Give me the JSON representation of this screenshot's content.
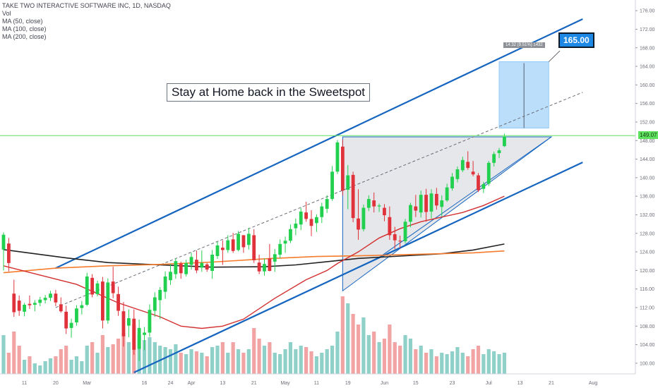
{
  "legend": {
    "title": "TAKE TWO INTERACTIVE SOFTWARE INC, 1D, NASDAQ",
    "vol": "Vol",
    "ma50": "MA (50, close)",
    "ma100": "MA (100, close)",
    "ma200": "MA (200, close)"
  },
  "annotation": {
    "text": "Stay at Home back in the Sweetspot"
  },
  "target": {
    "label": "165.00",
    "range_label": "14.32 (9.51%) 1432"
  },
  "current_price": {
    "label": "149.07"
  },
  "colors": {
    "up": "#26c6a0",
    "up_candle": "#21d04e",
    "down": "#e0323a",
    "vol_up": "#8fd0c8",
    "vol_down": "#f2a3a3",
    "channel": "#1565c0",
    "ma50": "#d32f2f",
    "ma100": "#f57c2c",
    "ma200": "#222222",
    "target_box": "#bbdefb",
    "triangle_fill": "#e6e7ea",
    "price_line": "#5fe35f"
  },
  "chart_data": {
    "type": "candlestick",
    "x_ticks": [
      "11",
      "20",
      "Mar",
      "16",
      "24",
      "Apr",
      "13",
      "21",
      "May",
      "11",
      "19",
      "Jun",
      "15",
      "23",
      "Jul",
      "13",
      "21",
      "Aug"
    ],
    "y_ticks": [
      100,
      104,
      108,
      112,
      116,
      120,
      124,
      128,
      132,
      136,
      140,
      144,
      148,
      152,
      156,
      160,
      164,
      168,
      172,
      176
    ],
    "ylim": [
      98,
      178
    ],
    "candles": [
      {
        "o": 124.5,
        "h": 128.2,
        "l": 120,
        "c": 127.7
      },
      {
        "o": 125.8,
        "h": 127,
        "l": 119.8,
        "c": 121.6
      },
      {
        "o": 115,
        "h": 118,
        "l": 110,
        "c": 111
      },
      {
        "o": 113.5,
        "h": 114.6,
        "l": 110.2,
        "c": 111.3
      },
      {
        "o": 111.1,
        "h": 113,
        "l": 110.1,
        "c": 112.6
      },
      {
        "o": 112.8,
        "h": 114.6,
        "l": 111.7,
        "c": 112.5
      },
      {
        "o": 112.6,
        "h": 113.6,
        "l": 111.2,
        "c": 113
      },
      {
        "o": 113,
        "h": 114.3,
        "l": 112.3,
        "c": 113.7
      },
      {
        "o": 113.6,
        "h": 114.7,
        "l": 112.9,
        "c": 114.1
      },
      {
        "o": 114.1,
        "h": 115.6,
        "l": 113.4,
        "c": 115
      },
      {
        "o": 115,
        "h": 115.8,
        "l": 112.3,
        "c": 113.1
      },
      {
        "o": 112.7,
        "h": 114.2,
        "l": 110.9,
        "c": 111.2
      },
      {
        "o": 111.1,
        "h": 112.4,
        "l": 106.3,
        "c": 107.5
      },
      {
        "o": 107.6,
        "h": 109.6,
        "l": 105.5,
        "c": 108.7
      },
      {
        "o": 108.8,
        "h": 112.5,
        "l": 108.1,
        "c": 111.8
      },
      {
        "o": 111.9,
        "h": 113.4,
        "l": 110.5,
        "c": 112.5
      },
      {
        "o": 112.6,
        "h": 119.5,
        "l": 112.3,
        "c": 118.7
      },
      {
        "o": 118.4,
        "h": 119.2,
        "l": 114.2,
        "c": 114.8
      },
      {
        "o": 114.9,
        "h": 117.8,
        "l": 114.4,
        "c": 117.2
      },
      {
        "o": 117.6,
        "h": 118.6,
        "l": 107.5,
        "c": 109.2
      },
      {
        "o": 109.2,
        "h": 118.3,
        "l": 108.5,
        "c": 117.4
      },
      {
        "o": 117.6,
        "h": 120.8,
        "l": 114,
        "c": 115.1
      },
      {
        "o": 114.9,
        "h": 116.5,
        "l": 110.2,
        "c": 111.3
      },
      {
        "o": 111.2,
        "h": 113.2,
        "l": 103.6,
        "c": 105.8
      },
      {
        "o": 108.1,
        "h": 111.6,
        "l": 105.6,
        "c": 109.7
      },
      {
        "o": 109.6,
        "h": 111.6,
        "l": 101.8,
        "c": 102.9
      },
      {
        "o": 103.1,
        "h": 109.4,
        "l": 100.5,
        "c": 107.6
      },
      {
        "o": 106.1,
        "h": 107.8,
        "l": 102.8,
        "c": 106.6
      },
      {
        "o": 106.6,
        "h": 112.7,
        "l": 105.7,
        "c": 111.5
      },
      {
        "o": 111.3,
        "h": 115.3,
        "l": 110,
        "c": 114.2
      },
      {
        "o": 113.6,
        "h": 116.4,
        "l": 109.5,
        "c": 115.8
      },
      {
        "o": 115.4,
        "h": 119.8,
        "l": 113.9,
        "c": 118.7
      },
      {
        "o": 117.9,
        "h": 121.4,
        "l": 116.9,
        "c": 119.7
      },
      {
        "o": 119.2,
        "h": 122.6,
        "l": 118.2,
        "c": 122
      },
      {
        "o": 121.5,
        "h": 121.9,
        "l": 118.2,
        "c": 119.4
      },
      {
        "o": 119.2,
        "h": 122.3,
        "l": 118.7,
        "c": 121.6
      },
      {
        "o": 121.2,
        "h": 123.8,
        "l": 120.2,
        "c": 122.9
      },
      {
        "o": 122.3,
        "h": 124.3,
        "l": 119.4,
        "c": 120
      },
      {
        "o": 120.6,
        "h": 124.3,
        "l": 119.7,
        "c": 121.6
      },
      {
        "o": 121.3,
        "h": 121.6,
        "l": 119.7,
        "c": 120.2
      },
      {
        "o": 119.9,
        "h": 124.4,
        "l": 118.2,
        "c": 123.4
      },
      {
        "o": 123.1,
        "h": 126.2,
        "l": 122.5,
        "c": 125.4
      },
      {
        "o": 124.9,
        "h": 126.5,
        "l": 121.2,
        "c": 124.4
      },
      {
        "o": 124.4,
        "h": 127.6,
        "l": 123.8,
        "c": 126.5
      },
      {
        "o": 126.7,
        "h": 128.1,
        "l": 123.8,
        "c": 124.2
      },
      {
        "o": 124.4,
        "h": 128.5,
        "l": 124.1,
        "c": 127.9
      },
      {
        "o": 127.6,
        "h": 127.6,
        "l": 123.8,
        "c": 125
      },
      {
        "o": 125.5,
        "h": 129.2,
        "l": 124.5,
        "c": 127.9
      },
      {
        "o": 127.6,
        "h": 128.9,
        "l": 121.6,
        "c": 122.2
      },
      {
        "o": 121.7,
        "h": 123.4,
        "l": 119.2,
        "c": 119.8
      },
      {
        "o": 119.8,
        "h": 122.6,
        "l": 118.9,
        "c": 121.4
      },
      {
        "o": 122.6,
        "h": 125.7,
        "l": 119.8,
        "c": 119.9
      },
      {
        "o": 121.9,
        "h": 124.6,
        "l": 119.7,
        "c": 123.5
      },
      {
        "o": 123.4,
        "h": 126.7,
        "l": 122.6,
        "c": 125.7
      },
      {
        "o": 125.8,
        "h": 127.3,
        "l": 123.8,
        "c": 126.4
      },
      {
        "o": 126.4,
        "h": 129.9,
        "l": 125.9,
        "c": 128.9
      },
      {
        "o": 129.1,
        "h": 131.2,
        "l": 127.6,
        "c": 130.1
      },
      {
        "o": 129.9,
        "h": 133.5,
        "l": 128.7,
        "c": 132.7
      },
      {
        "o": 132.5,
        "h": 134.8,
        "l": 130.5,
        "c": 131.1
      },
      {
        "o": 131.1,
        "h": 133,
        "l": 127.4,
        "c": 129.6
      },
      {
        "o": 130.2,
        "h": 132.1,
        "l": 128.3,
        "c": 131.5
      },
      {
        "o": 131.5,
        "h": 134.6,
        "l": 130.2,
        "c": 133.8
      },
      {
        "o": 133.3,
        "h": 136.2,
        "l": 132.4,
        "c": 135.4
      },
      {
        "o": 135.4,
        "h": 142.5,
        "l": 135,
        "c": 141.3
      },
      {
        "o": 141.3,
        "h": 148.1,
        "l": 140.8,
        "c": 147.6
      },
      {
        "o": 146.7,
        "h": 148.2,
        "l": 136.2,
        "c": 137.2
      },
      {
        "o": 137.4,
        "h": 142.7,
        "l": 133.2,
        "c": 140.5
      },
      {
        "o": 140.6,
        "h": 141.3,
        "l": 130.4,
        "c": 131.3
      },
      {
        "o": 131.2,
        "h": 137.5,
        "l": 126.6,
        "c": 128.8
      },
      {
        "o": 128.9,
        "h": 134.2,
        "l": 128.4,
        "c": 133.5
      },
      {
        "o": 133.5,
        "h": 136.2,
        "l": 132.8,
        "c": 135.4
      },
      {
        "o": 135.1,
        "h": 136.8,
        "l": 132.5,
        "c": 133.8
      },
      {
        "o": 133.8,
        "h": 134.4,
        "l": 132.6,
        "c": 134
      },
      {
        "o": 133.5,
        "h": 134.3,
        "l": 130.6,
        "c": 131.9
      },
      {
        "o": 131.5,
        "h": 133.8,
        "l": 126.6,
        "c": 127.6
      },
      {
        "o": 127.8,
        "h": 129.4,
        "l": 124.6,
        "c": 126.5
      },
      {
        "o": 126.4,
        "h": 127.5,
        "l": 124.8,
        "c": 126.3
      },
      {
        "o": 126.3,
        "h": 131.1,
        "l": 125.8,
        "c": 130.5
      },
      {
        "o": 130.5,
        "h": 134.6,
        "l": 129.3,
        "c": 134.1
      },
      {
        "o": 133.8,
        "h": 136.3,
        "l": 131.5,
        "c": 132.9
      },
      {
        "o": 132.5,
        "h": 137.2,
        "l": 131.4,
        "c": 136.3
      },
      {
        "o": 136.3,
        "h": 137.6,
        "l": 130.5,
        "c": 132.6
      },
      {
        "o": 132.7,
        "h": 137.5,
        "l": 131.2,
        "c": 136.6
      },
      {
        "o": 136.5,
        "h": 137.8,
        "l": 133.1,
        "c": 134
      },
      {
        "o": 133.7,
        "h": 136.2,
        "l": 131.6,
        "c": 135.1
      },
      {
        "o": 135.1,
        "h": 138.7,
        "l": 134.8,
        "c": 137.9
      },
      {
        "o": 137.7,
        "h": 141,
        "l": 137.2,
        "c": 140.2
      },
      {
        "o": 139.7,
        "h": 142.4,
        "l": 139,
        "c": 141.8
      },
      {
        "o": 141.6,
        "h": 144.5,
        "l": 141.2,
        "c": 143.8
      },
      {
        "o": 143.4,
        "h": 145.7,
        "l": 141.7,
        "c": 142.1
      },
      {
        "o": 141.3,
        "h": 143.6,
        "l": 140.3,
        "c": 140.7
      },
      {
        "o": 140.5,
        "h": 141,
        "l": 136.9,
        "c": 137.3
      },
      {
        "o": 137.6,
        "h": 139.1,
        "l": 136.7,
        "c": 138.6
      },
      {
        "o": 138.7,
        "h": 143.6,
        "l": 138.2,
        "c": 143.2
      },
      {
        "o": 143.2,
        "h": 145.6,
        "l": 142.4,
        "c": 145.1
      },
      {
        "o": 145.3,
        "h": 146.4,
        "l": 144.2,
        "c": 145.9
      },
      {
        "o": 146.8,
        "h": 149.5,
        "l": 146.6,
        "c": 148.9
      }
    ],
    "volume_direction": "matches candle direction",
    "ma50": [
      [
        0,
        121
      ],
      [
        14,
        117
      ],
      [
        22,
        113
      ],
      [
        30,
        110
      ],
      [
        34,
        108
      ],
      [
        38,
        107.5
      ],
      [
        42,
        108
      ],
      [
        46,
        109.5
      ],
      [
        52,
        114
      ],
      [
        58,
        118
      ],
      [
        62,
        120
      ],
      [
        64,
        121.5
      ],
      [
        68,
        124
      ],
      [
        72,
        127
      ],
      [
        76,
        129
      ],
      [
        80,
        130.5
      ],
      [
        84,
        131.5
      ],
      [
        88,
        132.5
      ],
      [
        92,
        134
      ],
      [
        96,
        136
      ]
    ],
    "ma100": [
      [
        0,
        119.5
      ],
      [
        10,
        120.5
      ],
      [
        20,
        121
      ],
      [
        30,
        121.3
      ],
      [
        40,
        121.8
      ],
      [
        50,
        122.5
      ],
      [
        60,
        123
      ],
      [
        70,
        123.2
      ],
      [
        80,
        123.5
      ],
      [
        90,
        123.8
      ],
      [
        96,
        124.2
      ]
    ],
    "ma200": [
      [
        0,
        124.5
      ],
      [
        6,
        123.6
      ],
      [
        12,
        122.7
      ],
      [
        20,
        121.7
      ],
      [
        30,
        121.2
      ],
      [
        40,
        120.7
      ],
      [
        50,
        120.8
      ],
      [
        56,
        121.2
      ],
      [
        62,
        121.9
      ],
      [
        68,
        122.6
      ],
      [
        76,
        123.1
      ],
      [
        84,
        123.6
      ],
      [
        90,
        124.4
      ],
      [
        96,
        125.7
      ]
    ],
    "channel_upper": [
      [
        10,
        120.5
      ],
      [
        111,
        174.2
      ]
    ],
    "channel_lower": [
      [
        25,
        98
      ],
      [
        111,
        143.3
      ]
    ],
    "triangle": [
      [
        65,
        148.8
      ],
      [
        105,
        148.8
      ],
      [
        65,
        115.6
      ]
    ],
    "triangle_support": [
      [
        72,
        122.8
      ],
      [
        105,
        148.8
      ]
    ],
    "dashed_trendline": [
      [
        10,
        112
      ],
      [
        111,
        158.4
      ]
    ],
    "target_range": {
      "from": 150.7,
      "to": 165.0
    },
    "current_price_line": 149.07
  }
}
